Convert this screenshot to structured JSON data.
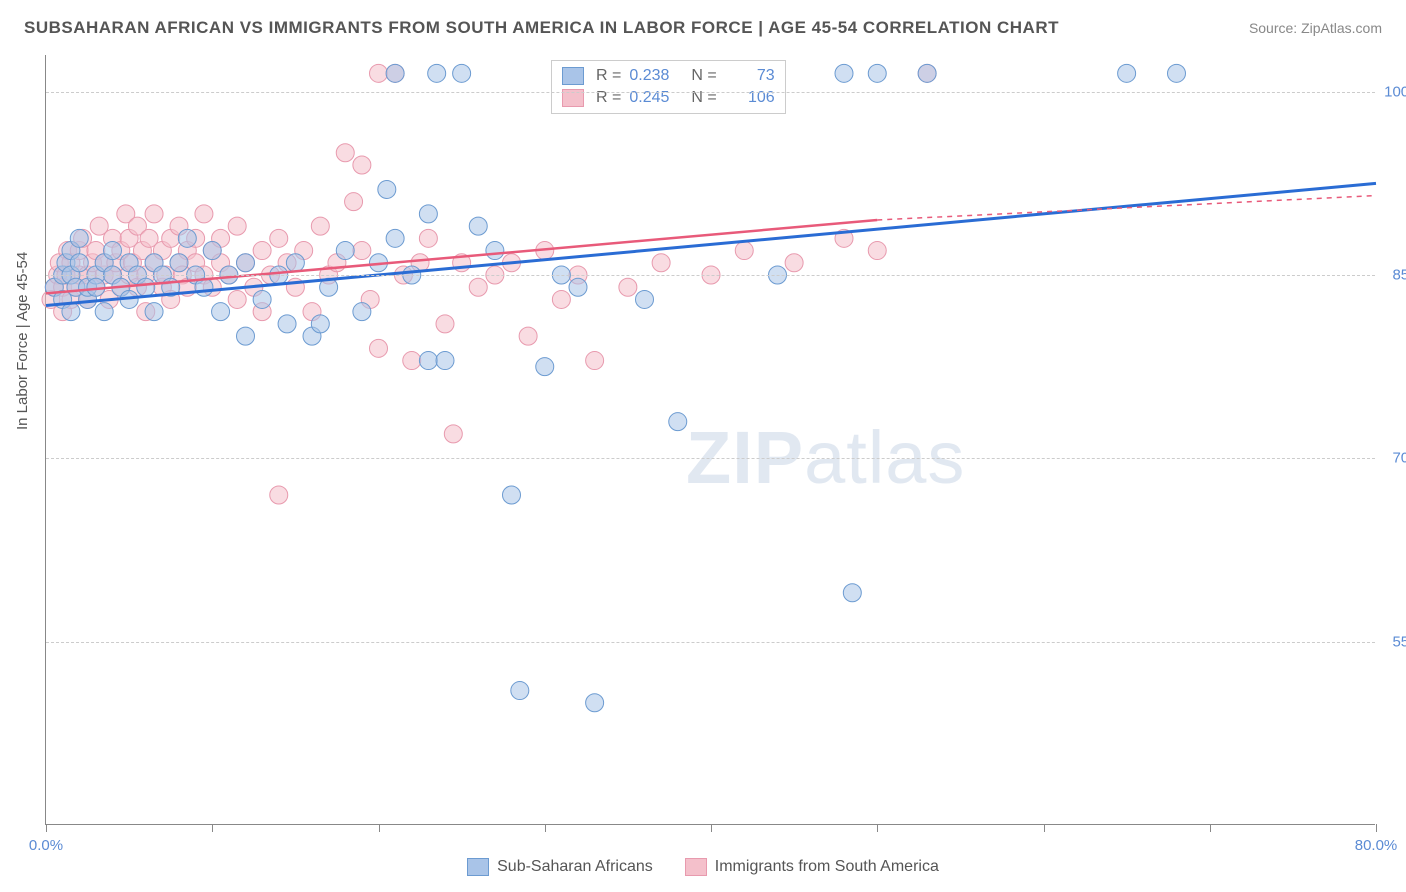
{
  "title": "SUBSAHARAN AFRICAN VS IMMIGRANTS FROM SOUTH AMERICA IN LABOR FORCE | AGE 45-54 CORRELATION CHART",
  "source": "Source: ZipAtlas.com",
  "ylabel": "In Labor Force | Age 45-54",
  "watermark": {
    "bold": "ZIP",
    "rest": "atlas"
  },
  "chart": {
    "type": "scatter-correlation",
    "background_color": "#ffffff",
    "grid_color": "#cccccc",
    "grid_dash": "4,4",
    "axis_color": "#888888",
    "label_color": "#555555",
    "tick_label_color": "#5b8bd4",
    "tick_fontsize": 15,
    "title_fontsize": 17,
    "marker_radius": 9,
    "marker_opacity": 0.55,
    "marker_stroke_width": 1,
    "xlim": [
      0,
      80
    ],
    "ylim": [
      40,
      103
    ],
    "xticks": [
      0,
      10,
      20,
      30,
      40,
      50,
      60,
      70,
      80
    ],
    "xtick_labels": {
      "0": "0.0%",
      "80": "80.0%"
    },
    "yticks": [
      55,
      70,
      85,
      100
    ],
    "ytick_labels": [
      "55.0%",
      "70.0%",
      "85.0%",
      "100.0%"
    ],
    "series": [
      {
        "name": "Sub-Saharan Africans",
        "color_fill": "#a9c4e8",
        "color_stroke": "#6c9bd1",
        "trend_color": "#2a6cd4",
        "trend_width": 3,
        "trend": {
          "x0": 0,
          "y0": 82.5,
          "x1": 80,
          "y1": 92.5
        },
        "r": "0.238",
        "n": "73",
        "points": [
          [
            0.5,
            84
          ],
          [
            1,
            83
          ],
          [
            1,
            85
          ],
          [
            1.2,
            86
          ],
          [
            1.5,
            82
          ],
          [
            1.5,
            85
          ],
          [
            1.5,
            87
          ],
          [
            1.8,
            84
          ],
          [
            2,
            86
          ],
          [
            2,
            88
          ],
          [
            2.5,
            83
          ],
          [
            2.5,
            84
          ],
          [
            3,
            85
          ],
          [
            3,
            84
          ],
          [
            3.5,
            86
          ],
          [
            3.5,
            82
          ],
          [
            4,
            87
          ],
          [
            4,
            85
          ],
          [
            4.5,
            84
          ],
          [
            5,
            86
          ],
          [
            5,
            83
          ],
          [
            5.5,
            85
          ],
          [
            6,
            84
          ],
          [
            6.5,
            86
          ],
          [
            6.5,
            82
          ],
          [
            7,
            85
          ],
          [
            7.5,
            84
          ],
          [
            8,
            86
          ],
          [
            8.5,
            88
          ],
          [
            9,
            85
          ],
          [
            9.5,
            84
          ],
          [
            10,
            87
          ],
          [
            10.5,
            82
          ],
          [
            11,
            85
          ],
          [
            12,
            86
          ],
          [
            12,
            80
          ],
          [
            13,
            83
          ],
          [
            14,
            85
          ],
          [
            14.5,
            81
          ],
          [
            15,
            86
          ],
          [
            16,
            80
          ],
          [
            16.5,
            81
          ],
          [
            17,
            84
          ],
          [
            18,
            87
          ],
          [
            19,
            82
          ],
          [
            20,
            86
          ],
          [
            20.5,
            92
          ],
          [
            21,
            88
          ],
          [
            21,
            101.5
          ],
          [
            22,
            85
          ],
          [
            23,
            78
          ],
          [
            23,
            90
          ],
          [
            23.5,
            101.5
          ],
          [
            24,
            78
          ],
          [
            25,
            101.5
          ],
          [
            26,
            89
          ],
          [
            27,
            87
          ],
          [
            28,
            67
          ],
          [
            28.5,
            51
          ],
          [
            30,
            77.5
          ],
          [
            31,
            85
          ],
          [
            32,
            84
          ],
          [
            33,
            50
          ],
          [
            33.5,
            101.5
          ],
          [
            36,
            83
          ],
          [
            38,
            73
          ],
          [
            44,
            85
          ],
          [
            48,
            101.5
          ],
          [
            48.5,
            59
          ],
          [
            50,
            101.5
          ],
          [
            53,
            101.5
          ],
          [
            65,
            101.5
          ],
          [
            68,
            101.5
          ]
        ]
      },
      {
        "name": "Immigrants from South America",
        "color_fill": "#f4c0cb",
        "color_stroke": "#e89aae",
        "trend_color": "#e85a7a",
        "trend_width": 2.5,
        "trend": {
          "x0": 0,
          "y0": 83.5,
          "x1": 50,
          "y1": 89.5
        },
        "trend_dash_ext": {
          "x0": 50,
          "y0": 89.5,
          "x1": 80,
          "y1": 91.5
        },
        "r": "0.245",
        "n": "106",
        "points": [
          [
            0.3,
            83
          ],
          [
            0.5,
            84
          ],
          [
            0.7,
            85
          ],
          [
            0.8,
            86
          ],
          [
            1,
            82
          ],
          [
            1,
            84
          ],
          [
            1.2,
            85
          ],
          [
            1.3,
            87
          ],
          [
            1.5,
            83
          ],
          [
            1.5,
            86
          ],
          [
            1.8,
            84
          ],
          [
            2,
            85
          ],
          [
            2,
            87
          ],
          [
            2.2,
            88
          ],
          [
            2.5,
            83
          ],
          [
            2.5,
            85
          ],
          [
            2.8,
            86
          ],
          [
            3,
            84
          ],
          [
            3,
            87
          ],
          [
            3.2,
            89
          ],
          [
            3.5,
            85
          ],
          [
            3.5,
            86
          ],
          [
            3.8,
            83
          ],
          [
            4,
            88
          ],
          [
            4,
            85
          ],
          [
            4.2,
            86
          ],
          [
            4.5,
            84
          ],
          [
            4.5,
            87
          ],
          [
            4.8,
            90
          ],
          [
            5,
            85
          ],
          [
            5,
            88
          ],
          [
            5.2,
            86
          ],
          [
            5.5,
            84
          ],
          [
            5.5,
            89
          ],
          [
            5.8,
            87
          ],
          [
            6,
            85
          ],
          [
            6,
            82
          ],
          [
            6.2,
            88
          ],
          [
            6.5,
            86
          ],
          [
            6.5,
            90
          ],
          [
            7,
            84
          ],
          [
            7,
            87
          ],
          [
            7.2,
            85
          ],
          [
            7.5,
            88
          ],
          [
            7.5,
            83
          ],
          [
            8,
            86
          ],
          [
            8,
            89
          ],
          [
            8.2,
            85
          ],
          [
            8.5,
            87
          ],
          [
            8.5,
            84
          ],
          [
            9,
            88
          ],
          [
            9,
            86
          ],
          [
            9.5,
            85
          ],
          [
            9.5,
            90
          ],
          [
            10,
            84
          ],
          [
            10,
            87
          ],
          [
            10.5,
            86
          ],
          [
            10.5,
            88
          ],
          [
            11,
            85
          ],
          [
            11.5,
            83
          ],
          [
            11.5,
            89
          ],
          [
            12,
            86
          ],
          [
            12.5,
            84
          ],
          [
            13,
            87
          ],
          [
            13,
            82
          ],
          [
            13.5,
            85
          ],
          [
            14,
            67
          ],
          [
            14,
            88
          ],
          [
            14.5,
            86
          ],
          [
            15,
            84
          ],
          [
            15.5,
            87
          ],
          [
            16,
            82
          ],
          [
            16.5,
            89
          ],
          [
            17,
            85
          ],
          [
            17.5,
            86
          ],
          [
            18,
            95
          ],
          [
            18.5,
            91
          ],
          [
            19,
            94
          ],
          [
            19,
            87
          ],
          [
            19.5,
            83
          ],
          [
            20,
            101.5
          ],
          [
            20,
            79
          ],
          [
            21,
            101.5
          ],
          [
            21.5,
            85
          ],
          [
            22,
            78
          ],
          [
            22.5,
            86
          ],
          [
            23,
            88
          ],
          [
            24,
            81
          ],
          [
            24.5,
            72
          ],
          [
            25,
            86
          ],
          [
            26,
            84
          ],
          [
            27,
            85
          ],
          [
            28,
            86
          ],
          [
            29,
            80
          ],
          [
            30,
            87
          ],
          [
            31,
            83
          ],
          [
            32,
            85
          ],
          [
            33,
            78
          ],
          [
            35,
            84
          ],
          [
            37,
            86
          ],
          [
            40,
            85
          ],
          [
            42,
            87
          ],
          [
            45,
            86
          ],
          [
            48,
            88
          ],
          [
            50,
            87
          ],
          [
            53,
            101.5
          ]
        ]
      }
    ]
  },
  "bottom_legend": [
    "Sub-Saharan Africans",
    "Immigrants from South America"
  ]
}
